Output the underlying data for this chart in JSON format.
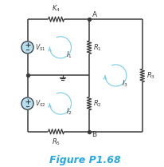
{
  "title": "Figure P1.68",
  "title_color": "#29a8e0",
  "title_fontsize": 9,
  "bg_color": "#ffffff",
  "line_color": "#3a3a3a",
  "component_color": "#3a3a3a",
  "mesh_color": "#7ecfe8",
  "node_color": "#1a1a1a",
  "lw_wire": 1.1,
  "lw_comp": 0.9
}
